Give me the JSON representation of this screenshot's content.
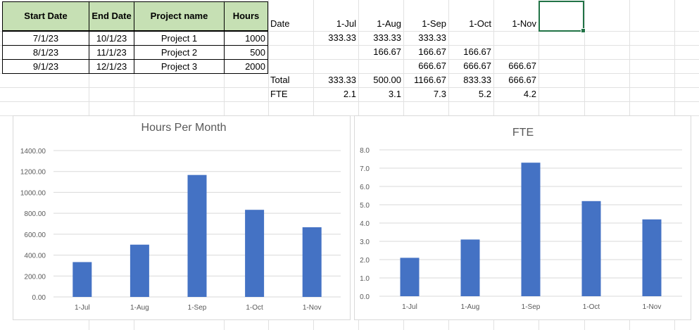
{
  "projects": {
    "headers": [
      "Start Date",
      "End Date",
      "Project name",
      "Hours"
    ],
    "rows": [
      {
        "start": "7/1/23",
        "end": "10/1/23",
        "name": "Project 1",
        "hours": "1000"
      },
      {
        "start": "8/1/23",
        "end": "11/1/23",
        "name": "Project 2",
        "hours": "500"
      },
      {
        "start": "9/1/23",
        "end": "12/1/23",
        "name": "Project 3",
        "hours": "2000"
      }
    ]
  },
  "monthly": {
    "date_label": "Date",
    "months": [
      "1-Jul",
      "1-Aug",
      "1-Sep",
      "1-Oct",
      "1-Nov"
    ],
    "rows": [
      [
        "333.33",
        "333.33",
        "333.33",
        "",
        ""
      ],
      [
        "",
        "166.67",
        "166.67",
        "166.67",
        ""
      ],
      [
        "",
        "",
        "666.67",
        "666.67",
        "666.67"
      ]
    ],
    "total_label": "Total",
    "totals": [
      "333.33",
      "500.00",
      "1166.67",
      "833.33",
      "666.67"
    ],
    "fte_label": "FTE",
    "fte": [
      "2.1",
      "3.1",
      "7.3",
      "5.2",
      "4.2"
    ]
  },
  "colors": {
    "bar": "#4472c4",
    "header_fill": "#c6e0b4",
    "selection": "#217346"
  },
  "chart_data": [
    {
      "type": "bar",
      "title": "Hours Per Month",
      "categories": [
        "1-Jul",
        "1-Aug",
        "1-Sep",
        "1-Oct",
        "1-Nov"
      ],
      "values": [
        333.33,
        500.0,
        1166.67,
        833.33,
        666.67
      ],
      "ylim": [
        0,
        1400
      ],
      "yticks": [
        "0.00",
        "200.00",
        "400.00",
        "600.00",
        "800.00",
        "1000.00",
        "1200.00",
        "1400.00"
      ],
      "grid": true
    },
    {
      "type": "bar",
      "title": "FTE",
      "categories": [
        "1-Jul",
        "1-Aug",
        "1-Sep",
        "1-Oct",
        "1-Nov"
      ],
      "values": [
        2.1,
        3.1,
        7.3,
        5.2,
        4.2
      ],
      "ylim": [
        0,
        8
      ],
      "yticks": [
        "0.0",
        "1.0",
        "2.0",
        "3.0",
        "4.0",
        "5.0",
        "6.0",
        "7.0",
        "8.0"
      ],
      "grid": true
    }
  ]
}
